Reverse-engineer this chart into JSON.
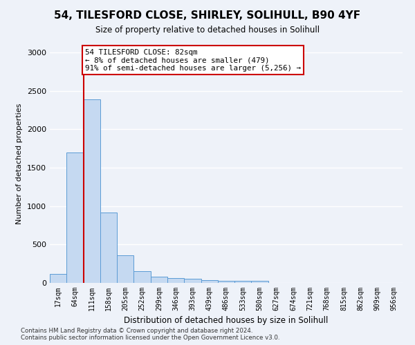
{
  "title": "54, TILESFORD CLOSE, SHIRLEY, SOLIHULL, B90 4YF",
  "subtitle": "Size of property relative to detached houses in Solihull",
  "xlabel": "Distribution of detached houses by size in Solihull",
  "ylabel": "Number of detached properties",
  "bar_color": "#c5d9f1",
  "bar_edge_color": "#5b9bd5",
  "categories": [
    "17sqm",
    "64sqm",
    "111sqm",
    "158sqm",
    "205sqm",
    "252sqm",
    "299sqm",
    "346sqm",
    "393sqm",
    "439sqm",
    "486sqm",
    "533sqm",
    "580sqm",
    "627sqm",
    "674sqm",
    "721sqm",
    "768sqm",
    "815sqm",
    "862sqm",
    "909sqm",
    "956sqm"
  ],
  "values": [
    120,
    1700,
    2390,
    920,
    355,
    155,
    85,
    65,
    50,
    35,
    30,
    25,
    30,
    0,
    0,
    0,
    0,
    0,
    0,
    0,
    0
  ],
  "ylim": [
    0,
    3100
  ],
  "yticks": [
    0,
    500,
    1000,
    1500,
    2000,
    2500,
    3000
  ],
  "red_line_x": 1.5,
  "annotation_text": "54 TILESFORD CLOSE: 82sqm\n← 8% of detached houses are smaller (479)\n91% of semi-detached houses are larger (5,256) →",
  "annotation_box_color": "#ffffff",
  "annotation_box_edge_color": "#cc0000",
  "red_line_color": "#cc0000",
  "footer_line1": "Contains HM Land Registry data © Crown copyright and database right 2024.",
  "footer_line2": "Contains public sector information licensed under the Open Government Licence v3.0.",
  "background_color": "#eef2f9",
  "grid_color": "#ffffff"
}
